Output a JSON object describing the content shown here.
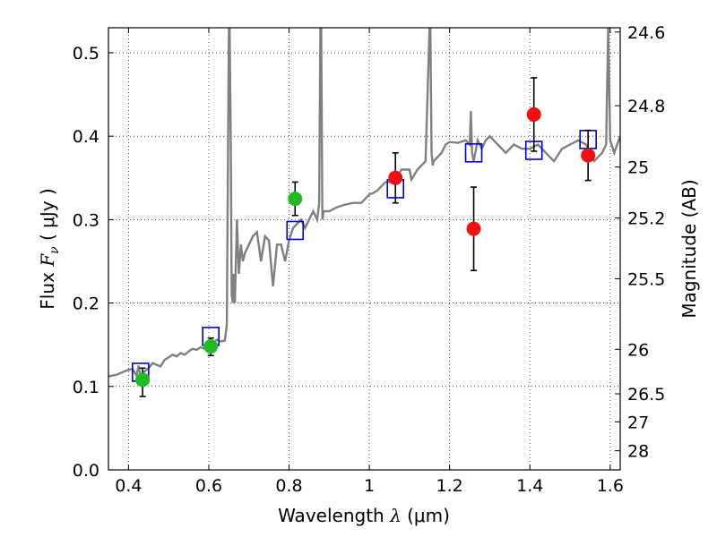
{
  "chart_data": {
    "type": "scatter",
    "title": "",
    "xlabel": {
      "prefix": "Wavelength  ",
      "symbol": "λ",
      "unit": " (μm)"
    },
    "ylabel": {
      "prefix": "Flux  ",
      "symbol": "F",
      "subscript": "ν",
      "unit": "  ( μJy )"
    },
    "y2label": "Magnitude (AB)",
    "xlim": [
      0.35,
      1.625
    ],
    "ylim": [
      0.0,
      0.53
    ],
    "grid": true,
    "x_ticks": [
      {
        "value": 0.4,
        "label": "0.4"
      },
      {
        "value": 0.6,
        "label": "0.6"
      },
      {
        "value": 0.8,
        "label": "0.8"
      },
      {
        "value": 1.0,
        "label": "1"
      },
      {
        "value": 1.2,
        "label": "1.2"
      },
      {
        "value": 1.4,
        "label": "1.4"
      },
      {
        "value": 1.6,
        "label": "1.6"
      }
    ],
    "y_ticks": [
      {
        "value": 0.0,
        "label": "0.0"
      },
      {
        "value": 0.1,
        "label": "0.1"
      },
      {
        "value": 0.2,
        "label": "0.2"
      },
      {
        "value": 0.3,
        "label": "0.3"
      },
      {
        "value": 0.4,
        "label": "0.4"
      },
      {
        "value": 0.5,
        "label": "0.5"
      }
    ],
    "y2_ticks": [
      {
        "value": 24.6,
        "label": "24.6"
      },
      {
        "value": 24.8,
        "label": "24.8"
      },
      {
        "value": 25.0,
        "label": "25"
      },
      {
        "value": 25.2,
        "label": "25.2"
      },
      {
        "value": 25.5,
        "label": "25.5"
      },
      {
        "value": 26.0,
        "label": "26"
      },
      {
        "value": 26.5,
        "label": "26.5"
      },
      {
        "value": 27.0,
        "label": "27"
      },
      {
        "value": 28.0,
        "label": "28"
      }
    ],
    "model_spectrum": {
      "color": "#808080",
      "x": [
        0.35,
        0.37,
        0.39,
        0.4,
        0.41,
        0.42,
        0.425,
        0.43,
        0.44,
        0.45,
        0.46,
        0.47,
        0.48,
        0.49,
        0.5,
        0.51,
        0.52,
        0.53,
        0.54,
        0.55,
        0.56,
        0.57,
        0.58,
        0.59,
        0.6,
        0.61,
        0.62,
        0.63,
        0.64,
        0.645,
        0.65,
        0.652,
        0.655,
        0.657,
        0.66,
        0.662,
        0.665,
        0.67,
        0.675,
        0.68,
        0.685,
        0.69,
        0.7,
        0.71,
        0.72,
        0.73,
        0.74,
        0.75,
        0.76,
        0.77,
        0.78,
        0.79,
        0.8,
        0.81,
        0.82,
        0.83,
        0.84,
        0.85,
        0.86,
        0.87,
        0.875,
        0.878,
        0.88,
        0.883,
        0.886,
        0.89,
        0.9,
        0.92,
        0.94,
        0.96,
        0.98,
        1.0,
        1.01,
        1.02,
        1.04,
        1.06,
        1.08,
        1.095,
        1.1,
        1.105,
        1.12,
        1.14,
        1.15,
        1.152,
        1.155,
        1.158,
        1.16,
        1.17,
        1.18,
        1.19,
        1.2,
        1.22,
        1.24,
        1.25,
        1.253,
        1.256,
        1.26,
        1.27,
        1.28,
        1.29,
        1.3,
        1.32,
        1.34,
        1.36,
        1.38,
        1.4,
        1.42,
        1.44,
        1.46,
        1.48,
        1.5,
        1.52,
        1.54,
        1.56,
        1.58,
        1.59,
        1.595,
        1.6,
        1.61,
        1.625
      ],
      "y": [
        0.112,
        0.114,
        0.118,
        0.12,
        0.121,
        0.113,
        0.125,
        0.112,
        0.118,
        0.122,
        0.128,
        0.126,
        0.124,
        0.132,
        0.135,
        0.138,
        0.136,
        0.14,
        0.138,
        0.142,
        0.145,
        0.144,
        0.147,
        0.145,
        0.148,
        0.152,
        0.156,
        0.154,
        0.155,
        0.175,
        0.53,
        0.53,
        0.38,
        0.21,
        0.2,
        0.235,
        0.2,
        0.3,
        0.235,
        0.27,
        0.25,
        0.26,
        0.27,
        0.28,
        0.285,
        0.25,
        0.28,
        0.275,
        0.22,
        0.27,
        0.27,
        0.25,
        0.275,
        0.29,
        0.295,
        0.3,
        0.29,
        0.3,
        0.31,
        0.3,
        0.32,
        0.53,
        0.53,
        0.3,
        0.31,
        0.31,
        0.31,
        0.315,
        0.318,
        0.32,
        0.32,
        0.33,
        0.332,
        0.335,
        0.345,
        0.345,
        0.36,
        0.36,
        0.36,
        0.348,
        0.36,
        0.37,
        0.53,
        0.53,
        0.38,
        0.365,
        0.37,
        0.375,
        0.38,
        0.39,
        0.393,
        0.392,
        0.395,
        0.39,
        0.43,
        0.38,
        0.37,
        0.395,
        0.385,
        0.395,
        0.4,
        0.39,
        0.38,
        0.39,
        0.385,
        0.385,
        0.39,
        0.38,
        0.37,
        0.385,
        0.39,
        0.395,
        0.39,
        0.37,
        0.38,
        0.39,
        0.53,
        0.395,
        0.38,
        0.4
      ]
    },
    "series": [
      {
        "marker": "square-open",
        "color": "#0000cc",
        "x": [
          0.43,
          0.605,
          0.815,
          1.065,
          1.26,
          1.41,
          1.545
        ],
        "y": [
          0.117,
          0.16,
          0.287,
          0.337,
          0.38,
          0.383,
          0.396
        ]
      },
      {
        "marker": "circle",
        "color": "#22bb22",
        "x": [
          0.435,
          0.605,
          0.815
        ],
        "y": [
          0.108,
          0.148,
          0.325
        ],
        "err_low": [
          0.02,
          0.011,
          0.02
        ],
        "err_high": [
          0.014,
          0.01,
          0.02
        ]
      },
      {
        "marker": "circle",
        "color": "#ee1111",
        "x": [
          1.065,
          1.26,
          1.41,
          1.545
        ],
        "y": [
          0.35,
          0.289,
          0.426,
          0.377
        ],
        "err_low": [
          0.03,
          0.05,
          0.044,
          0.03
        ],
        "err_high": [
          0.03,
          0.05,
          0.044,
          0.03
        ]
      }
    ]
  }
}
